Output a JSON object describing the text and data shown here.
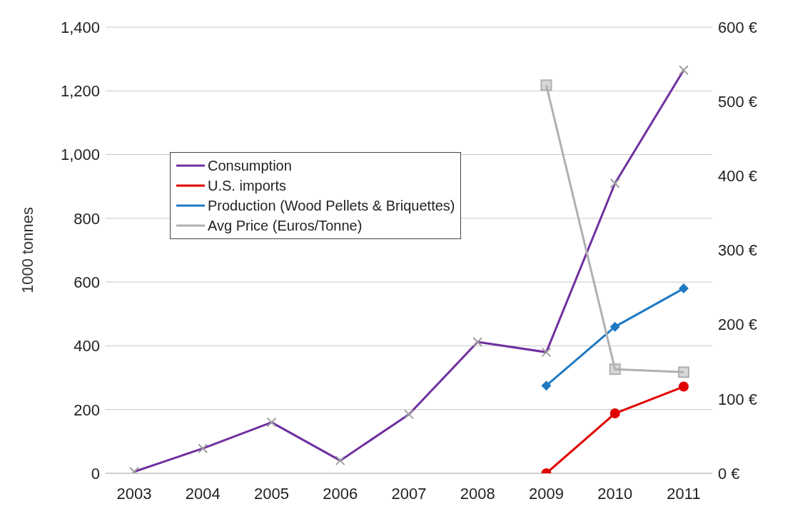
{
  "chart_data": {
    "type": "line",
    "categories": [
      "2003",
      "2004",
      "2005",
      "2006",
      "2007",
      "2008",
      "2009",
      "2010",
      "2011"
    ],
    "ylabel": "1000 tonnes",
    "ylim": [
      0,
      1400
    ],
    "yticks": [
      0,
      {
        "value": 200,
        "label": "200"
      },
      {
        "value": 400,
        "label": "400"
      },
      {
        "value": 600,
        "label": "600"
      },
      {
        "value": 800,
        "label": "800"
      },
      {
        "value": 1000,
        "label": "1,000"
      },
      {
        "value": 1200,
        "label": "1,200"
      },
      {
        "value": 1400,
        "label": "1,400"
      }
    ],
    "y2lim": [
      0,
      600
    ],
    "y2ticks": [
      {
        "value": 0,
        "label": "0 €"
      },
      {
        "value": 100,
        "label": "100 €"
      },
      {
        "value": 200,
        "label": "200 €"
      },
      {
        "value": 300,
        "label": "300 €"
      },
      {
        "value": 400,
        "label": "400 €"
      },
      {
        "value": 500,
        "label": "500 €"
      },
      {
        "value": 600,
        "label": "600 €"
      }
    ],
    "grid": "y",
    "legend": "top left",
    "series": [
      {
        "name": "Consumption",
        "color": "#7030a0",
        "marker": "cross",
        "values": [
          5,
          78,
          160,
          40,
          185,
          412,
          380,
          910,
          1265
        ]
      },
      {
        "name": "U.S. imports",
        "color": "#e00000",
        "marker": "circle",
        "values": [
          null,
          null,
          null,
          null,
          null,
          null,
          0,
          188,
          272
        ]
      },
      {
        "name": "Production (Wood Pellets & Briquettes)",
        "color": "#1f7ac4",
        "marker": "diamond",
        "values": [
          null,
          null,
          null,
          null,
          null,
          null,
          275,
          460,
          580
        ]
      },
      {
        "name": "Avg Price (Euros/Tonne)",
        "color": "#b0b0b0",
        "marker": "square",
        "axis": "y2",
        "values": [
          null,
          null,
          null,
          null,
          null,
          null,
          522,
          140,
          136
        ]
      }
    ]
  }
}
